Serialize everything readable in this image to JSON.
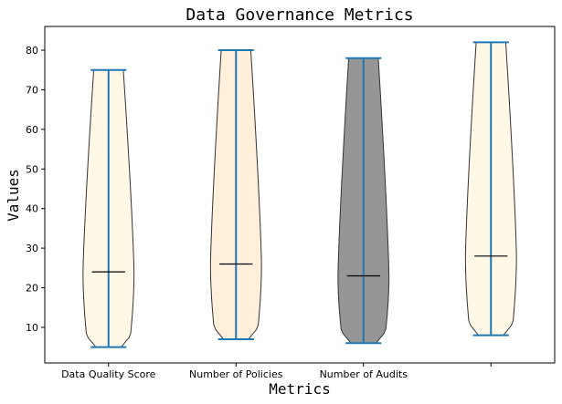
{
  "chart_data": {
    "type": "violin",
    "title": "Data Governance Metrics",
    "xlabel": "Metrics",
    "ylabel": "Values",
    "ylim": [
      1,
      86
    ],
    "yticks": [
      10,
      20,
      30,
      40,
      50,
      60,
      70,
      80
    ],
    "grid": false,
    "categories": [
      "Data Quality Score",
      "Number of Policies",
      "Number of Audits",
      ""
    ],
    "violins": [
      {
        "min": 5,
        "max": 75,
        "median": 24,
        "fill": "#fff8e7"
      },
      {
        "min": 7,
        "max": 80,
        "median": 26,
        "fill": "#ffefdb"
      },
      {
        "min": 6,
        "max": 78,
        "median": 23,
        "fill": "#969696"
      },
      {
        "min": 8,
        "max": 82,
        "median": 28,
        "fill": "#fff8e7"
      }
    ],
    "colors": {
      "extrema": "#1f77b4",
      "median": "#000000",
      "outline": "#333333"
    }
  }
}
